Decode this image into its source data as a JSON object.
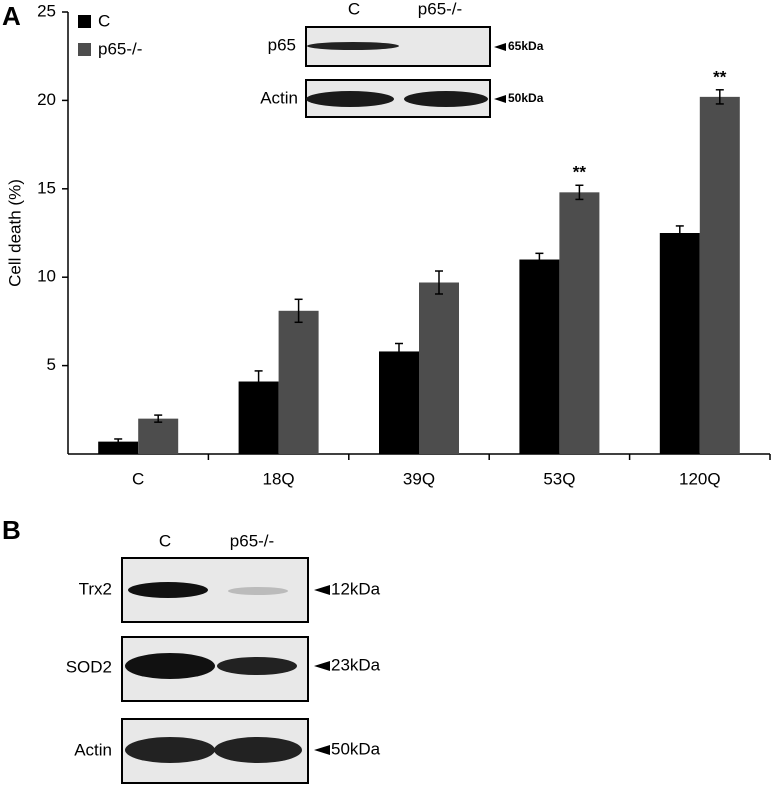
{
  "panel_a": {
    "label": "A",
    "inset": {
      "columns": [
        "C",
        "p65-/-"
      ],
      "rows": [
        {
          "label": "p65",
          "size": "65kDa"
        },
        {
          "label": "Actin",
          "size": "50kDa"
        }
      ]
    }
  },
  "chart_data": {
    "type": "bar",
    "ylabel": "Cell death (%)",
    "categories": [
      "C",
      "18Q",
      "39Q",
      "53Q",
      "120Q"
    ],
    "series": [
      {
        "name": "C",
        "color": "#000000",
        "values": [
          0.7,
          4.1,
          5.8,
          11.0,
          12.5
        ],
        "errors": [
          0.15,
          0.6,
          0.45,
          0.35,
          0.4
        ],
        "value_annotations": [
          null,
          null,
          null,
          null,
          null
        ]
      },
      {
        "name": "p65-/-",
        "color": "#4d4d4d",
        "values": [
          2.0,
          8.1,
          9.7,
          14.8,
          20.2
        ],
        "errors": [
          0.2,
          0.65,
          0.65,
          0.4,
          0.4
        ],
        "value_annotations": [
          null,
          null,
          null,
          "**",
          "**"
        ]
      }
    ],
    "ylim": [
      0,
      25
    ],
    "yticks": [
      5,
      10,
      15,
      20,
      25
    ],
    "legend": "upper left"
  },
  "panel_b": {
    "label": "B",
    "columns": [
      "C",
      "p65-/-"
    ],
    "rows": [
      {
        "label": "Trx2",
        "size": "12kDa"
      },
      {
        "label": "SOD2",
        "size": "23kDa"
      },
      {
        "label": "Actin",
        "size": "50kDa"
      }
    ]
  }
}
